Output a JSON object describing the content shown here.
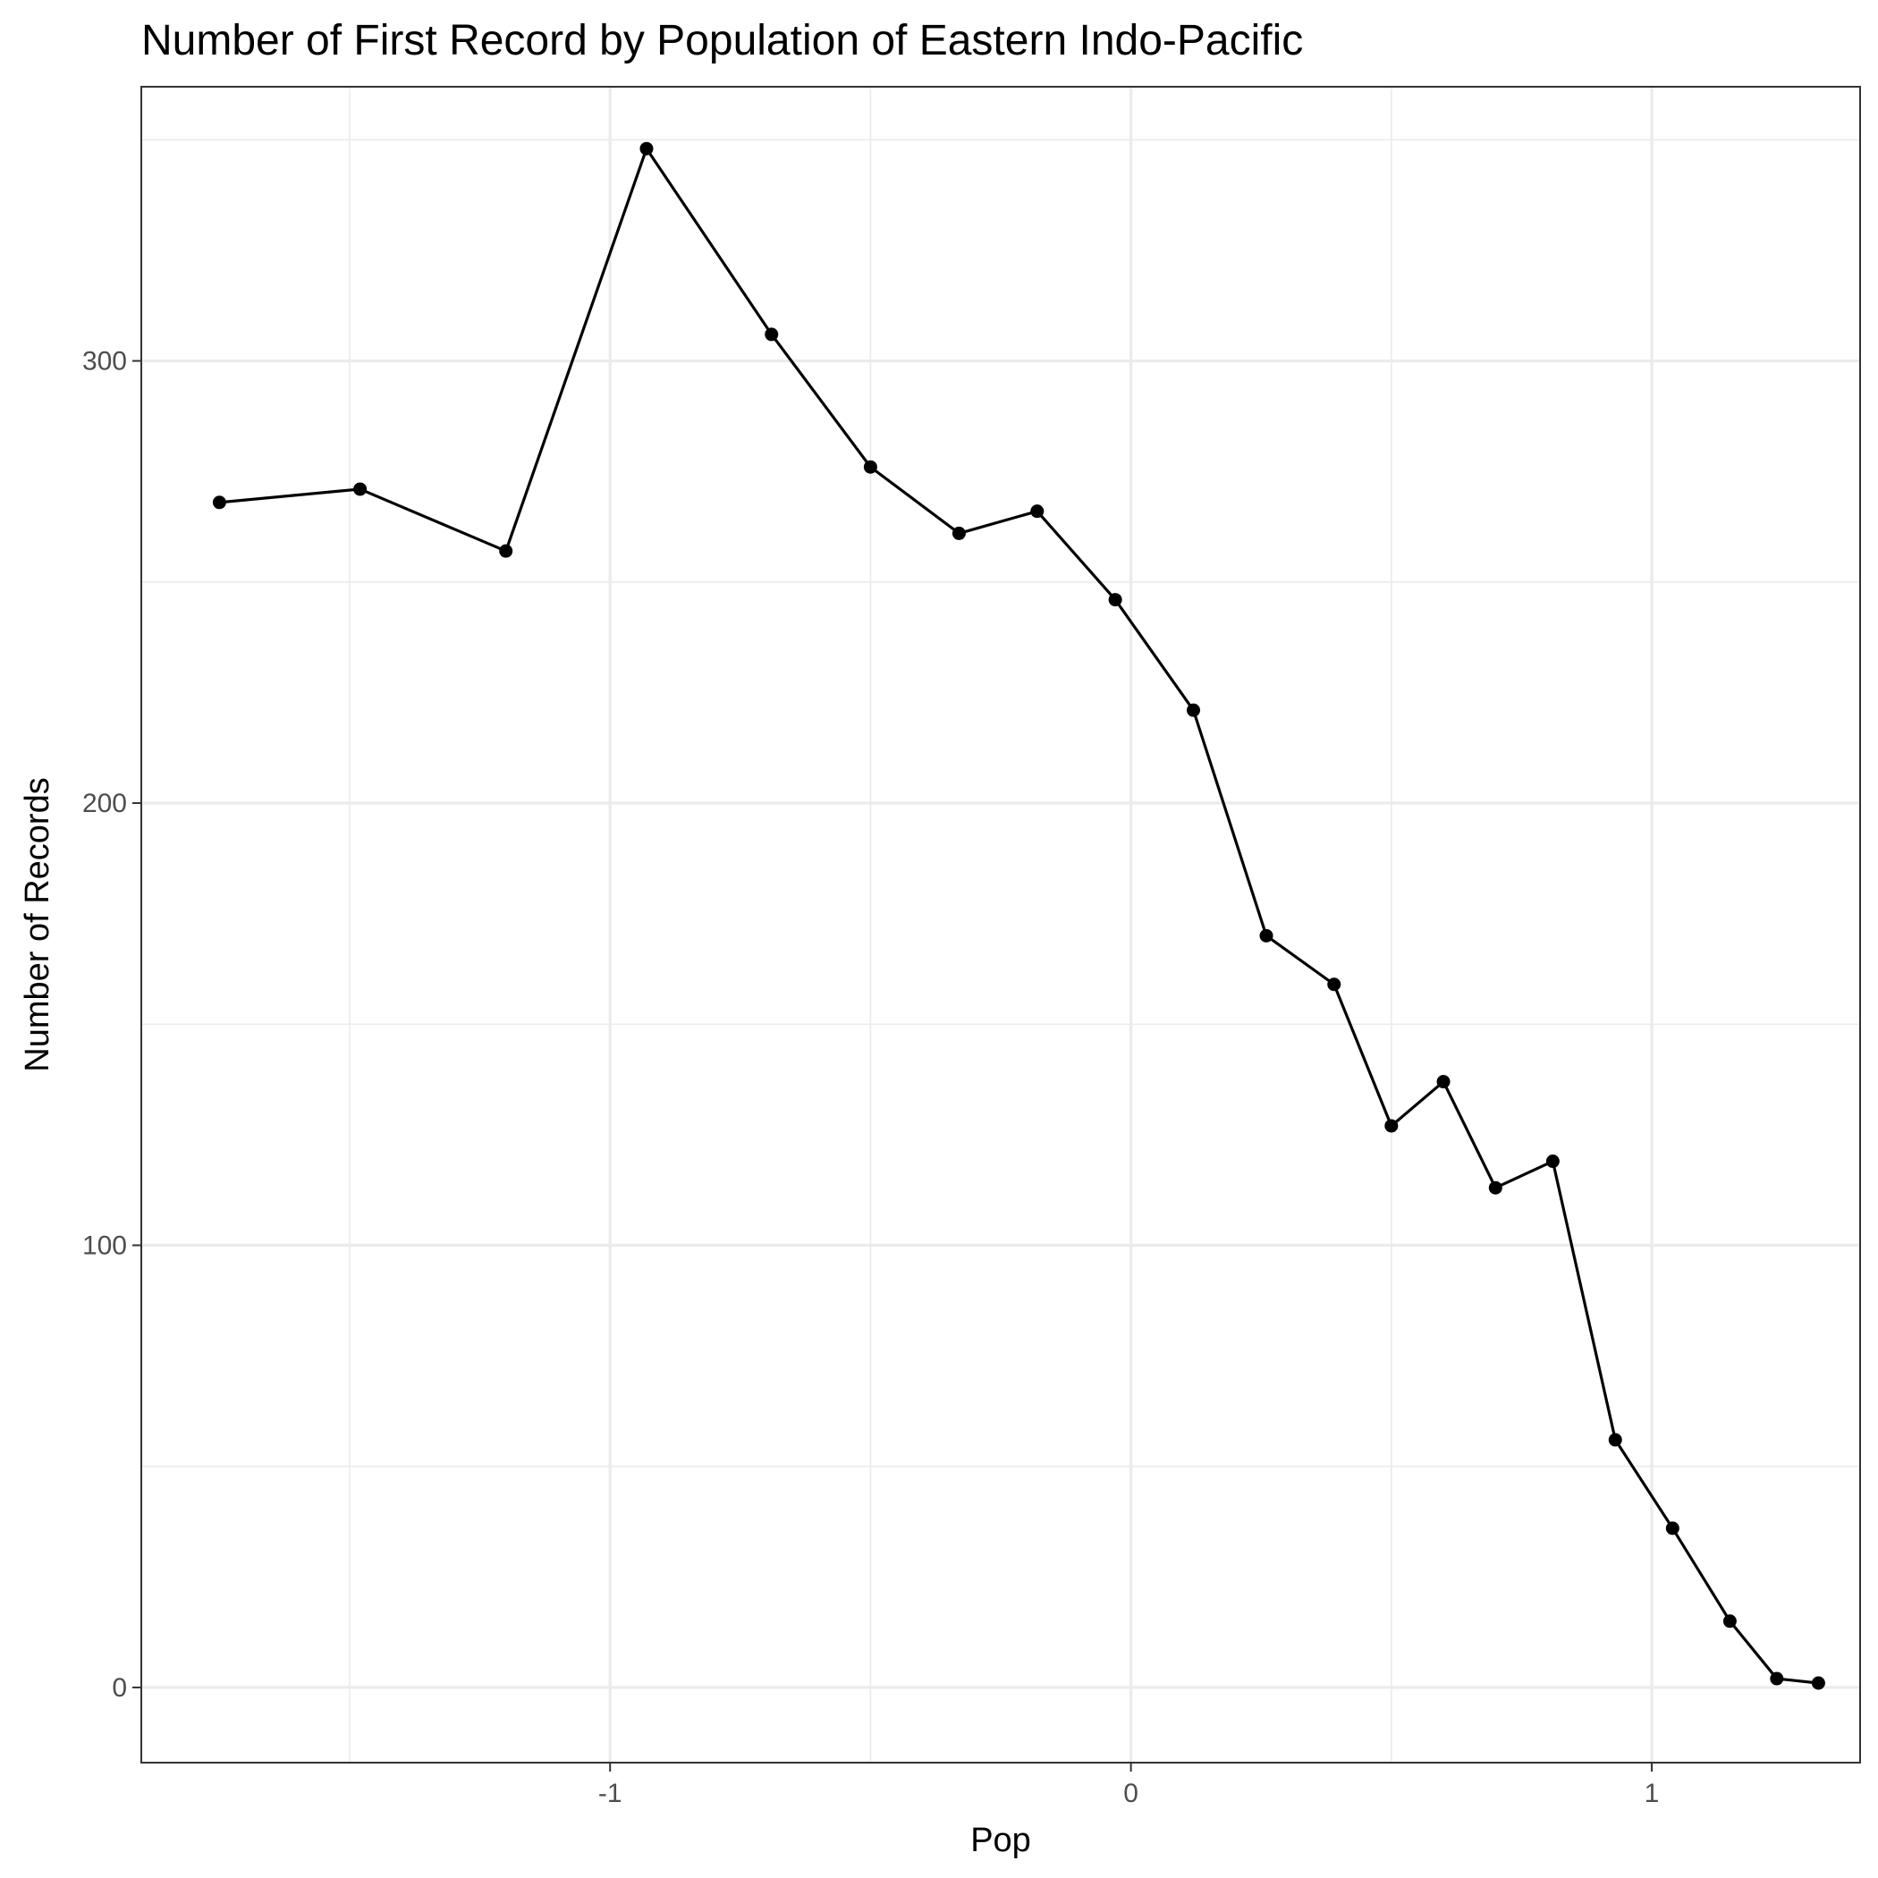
{
  "chart_data": {
    "type": "line",
    "title": "Number of First Record by Population of Eastern Indo-Pacific",
    "xlabel": "Pop",
    "ylabel": "Number of Records",
    "xlim": [
      -1.9,
      1.4
    ],
    "ylim": [
      -17,
      362
    ],
    "xticks": [
      {
        "value": -1,
        "label": "-1"
      },
      {
        "value": 0,
        "label": "0"
      },
      {
        "value": 1,
        "label": "1"
      }
    ],
    "yticks": [
      {
        "value": 0,
        "label": "0"
      },
      {
        "value": 100,
        "label": "100"
      },
      {
        "value": 200,
        "label": "200"
      },
      {
        "value": 300,
        "label": "300"
      }
    ],
    "x_minor_gridlines": [
      -1.5,
      -0.5,
      0.5
    ],
    "y_minor_gridlines": [
      50,
      150,
      250,
      350
    ],
    "grid": true,
    "legend": "none",
    "colors": {
      "line": "#000000",
      "point": "#000000",
      "grid": "#ebebeb",
      "panel_border": "#333333"
    },
    "series": [
      {
        "x": [
          -1.75,
          -1.48,
          -1.2,
          -0.93,
          -0.69,
          -0.5,
          -0.33,
          -0.18,
          -0.03,
          0.12,
          0.26,
          0.39,
          0.5,
          0.6,
          0.7,
          0.81,
          0.93,
          1.04,
          1.15,
          1.24,
          1.32
        ],
        "y": [
          268,
          271,
          257,
          348,
          306,
          276,
          261,
          266,
          246,
          221,
          170,
          159,
          127,
          137,
          113,
          119,
          56,
          36,
          15,
          2,
          1
        ]
      }
    ]
  }
}
